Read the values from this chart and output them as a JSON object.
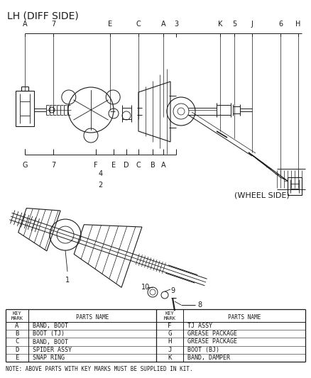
{
  "title": "LH (DIFF SIDE)",
  "wheel_side_label": "(WHEEL SIDE)",
  "background_color": "#ffffff",
  "line_color": "#1a1a1a",
  "table": {
    "left_keys": [
      "A",
      "B",
      "C",
      "D",
      "E"
    ],
    "left_parts": [
      "BAND, BOOT",
      "BOOT (TJ)",
      "BAND, BOOT",
      "SPIDER ASSY",
      "SNAP RING"
    ],
    "right_keys": [
      "F",
      "G",
      "H",
      "J",
      "K"
    ],
    "right_parts": [
      "TJ ASSY",
      "GREASE PACKAGE",
      "GREASE PACKAGE",
      "BOOT (BJ)",
      "BAND, DAMPER"
    ]
  },
  "note": "NOTE: ABOVE PARTS WITH KEY MARKS MUST BE SUPPLIED IN KIT."
}
